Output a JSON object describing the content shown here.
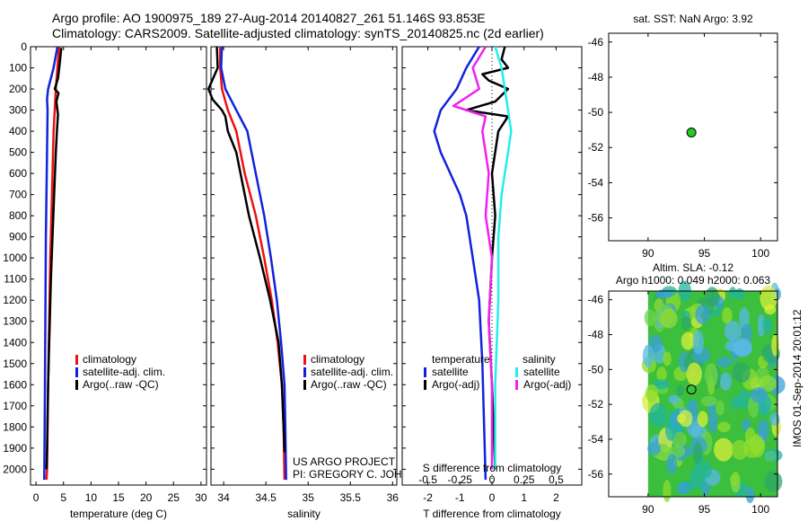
{
  "header": {
    "title_line1": "Argo profile: AO 1900975_189 27-Aug-2014 20140827_261 51.146S 93.853E",
    "title_line2": "Climatology: CARS2009. Satellite-adjusted climatology: synTS_20140825.nc (2d earlier)"
  },
  "colors": {
    "climatology": "#ee1111",
    "satellite": "#1122dd",
    "argo": "#000000",
    "salinity_sat": "#22eeee",
    "salinity_argo": "#ee22ee",
    "map_dot": "#22cc22"
  },
  "chart_data": [
    {
      "type": "line",
      "name": "temperature-profile",
      "xlabel": "temperature (deg C)",
      "ylabel": "",
      "xlim": [
        -1,
        31
      ],
      "ylim": [
        2075,
        0
      ],
      "xticks": [
        "0",
        "5",
        "10",
        "15",
        "20",
        "25",
        "30"
      ],
      "xtick_values": [
        0,
        5,
        10,
        15,
        20,
        25,
        30
      ],
      "yticks": [
        "0",
        "100",
        "200",
        "300",
        "400",
        "500",
        "600",
        "700",
        "800",
        "900",
        "1000",
        "1100",
        "1200",
        "1300",
        "1400",
        "1500",
        "1600",
        "1700",
        "1800",
        "1900",
        "2000"
      ],
      "ytick_values": [
        0,
        100,
        200,
        300,
        400,
        500,
        600,
        700,
        800,
        900,
        1000,
        1100,
        1200,
        1300,
        1400,
        1500,
        1600,
        1700,
        1800,
        1900,
        2000
      ],
      "legend": [
        "climatology",
        "satellite-adj. clim.",
        "Argo(..raw -QC)"
      ],
      "series": [
        {
          "name": "climatology",
          "key": "climatology",
          "points": [
            [
              4.2,
              0
            ],
            [
              3.9,
              100
            ],
            [
              3.6,
              200
            ],
            [
              3.4,
              300
            ],
            [
              3.2,
              400
            ],
            [
              3.0,
              600
            ],
            [
              2.8,
              800
            ],
            [
              2.6,
              1000
            ],
            [
              2.4,
              1300
            ],
            [
              2.2,
              1600
            ],
            [
              2.0,
              2000
            ],
            [
              1.9,
              2050
            ]
          ]
        },
        {
          "name": "satellite-adj. clim.",
          "key": "satellite",
          "points": [
            [
              3.9,
              0
            ],
            [
              3.2,
              100
            ],
            [
              2.2,
              200
            ],
            [
              2.0,
              250
            ],
            [
              2.1,
              300
            ],
            [
              2.0,
              500
            ],
            [
              1.8,
              900
            ],
            [
              1.7,
              1300
            ],
            [
              1.6,
              1700
            ],
            [
              1.5,
              2050
            ]
          ]
        },
        {
          "name": "Argo(..raw -QC)",
          "key": "argo",
          "points": [
            [
              4.6,
              5
            ],
            [
              4.3,
              80
            ],
            [
              4.0,
              150
            ],
            [
              3.4,
              200
            ],
            [
              4.1,
              220
            ],
            [
              3.7,
              260
            ],
            [
              4.0,
              320
            ],
            [
              3.8,
              400
            ],
            [
              3.6,
              500
            ],
            [
              3.3,
              700
            ],
            [
              3.0,
              900
            ],
            [
              2.7,
              1100
            ],
            [
              2.4,
              1400
            ],
            [
              2.2,
              1600
            ],
            [
              2.0,
              1900
            ],
            [
              1.9,
              2000
            ]
          ]
        }
      ]
    },
    {
      "type": "line",
      "name": "salinity-profile",
      "xlabel": "salinity",
      "xlim": [
        33.85,
        36.05
      ],
      "ylim": [
        2075,
        0
      ],
      "xticks": [
        "34",
        "34.5",
        "35",
        "35.5",
        "36"
      ],
      "xtick_values": [
        34,
        34.5,
        35,
        35.5,
        36
      ],
      "legend": [
        "climatology",
        "satellite-adj. clim.",
        "Argo(..raw -QC)"
      ],
      "annotation": [
        "US ARGO PROJECT",
        "PI: GREGORY C. JOHNSON"
      ],
      "series": [
        {
          "name": "climatology",
          "key": "climatology",
          "points": [
            [
              33.96,
              0
            ],
            [
              33.96,
              100
            ],
            [
              33.98,
              200
            ],
            [
              34.05,
              300
            ],
            [
              34.15,
              400
            ],
            [
              34.25,
              600
            ],
            [
              34.38,
              800
            ],
            [
              34.48,
              1000
            ],
            [
              34.57,
              1200
            ],
            [
              34.64,
              1400
            ],
            [
              34.69,
              1600
            ],
            [
              34.71,
              1800
            ],
            [
              34.72,
              2050
            ]
          ]
        },
        {
          "name": "satellite-adj. clim.",
          "key": "satellite",
          "points": [
            [
              33.98,
              0
            ],
            [
              33.97,
              100
            ],
            [
              34.02,
              200
            ],
            [
              34.15,
              300
            ],
            [
              34.28,
              400
            ],
            [
              34.38,
              600
            ],
            [
              34.48,
              800
            ],
            [
              34.56,
              1000
            ],
            [
              34.63,
              1200
            ],
            [
              34.68,
              1400
            ],
            [
              34.72,
              1600
            ],
            [
              34.73,
              1800
            ],
            [
              34.74,
              2050
            ]
          ]
        },
        {
          "name": "Argo(..raw -QC)",
          "key": "argo",
          "points": [
            [
              33.92,
              0
            ],
            [
              33.93,
              100
            ],
            [
              33.82,
              200
            ],
            [
              33.87,
              250
            ],
            [
              33.98,
              300
            ],
            [
              34.02,
              330
            ],
            [
              34.05,
              400
            ],
            [
              34.15,
              500
            ],
            [
              34.2,
              600
            ],
            [
              34.3,
              800
            ],
            [
              34.43,
              1000
            ],
            [
              34.55,
              1200
            ],
            [
              34.65,
              1400
            ],
            [
              34.69,
              1600
            ],
            [
              34.71,
              1800
            ],
            [
              34.72,
              1920
            ]
          ]
        }
      ]
    },
    {
      "type": "line",
      "name": "difference-profile",
      "xlabel": "T difference from climatology",
      "xlabel_top": "S difference from climatology",
      "xlim": [
        -2.8,
        2.8
      ],
      "ylim": [
        2075,
        0
      ],
      "xticks": [
        "-2",
        "-1",
        "0",
        "1",
        "2"
      ],
      "xtick_values": [
        -2,
        -1,
        0,
        1,
        2
      ],
      "xticks_top": [
        "-0.5",
        "-0.25",
        "0",
        "0.25",
        "0.5"
      ],
      "xtick_top_values": [
        -2,
        -1,
        0,
        1,
        2
      ],
      "legend_temperature": {
        "title": "temperature",
        "items": [
          "satellite",
          "Argo(-adj)"
        ]
      },
      "legend_salinity": {
        "title": "salinity",
        "items": [
          "satellite",
          "Argo(-adj)"
        ]
      },
      "series": [
        {
          "name": "T satellite",
          "key": "satellite",
          "points": [
            [
              -0.4,
              0
            ],
            [
              -0.8,
              100
            ],
            [
              -1.1,
              200
            ],
            [
              -1.6,
              300
            ],
            [
              -1.8,
              400
            ],
            [
              -1.6,
              500
            ],
            [
              -1.3,
              600
            ],
            [
              -1.0,
              700
            ],
            [
              -0.8,
              800
            ],
            [
              -0.6,
              1000
            ],
            [
              -0.4,
              1200
            ],
            [
              -0.3,
              1500
            ],
            [
              -0.2,
              2050
            ]
          ]
        },
        {
          "name": "T Argo(-adj)",
          "key": "argo",
          "points": [
            [
              0.4,
              0
            ],
            [
              0.3,
              60
            ],
            [
              0.5,
              100
            ],
            [
              -0.3,
              130
            ],
            [
              -0.1,
              160
            ],
            [
              0.5,
              200
            ],
            [
              0.1,
              260
            ],
            [
              -0.8,
              300
            ],
            [
              0.5,
              330
            ],
            [
              0.2,
              400
            ],
            [
              0.0,
              600
            ],
            [
              0.1,
              800
            ],
            [
              0.0,
              1000
            ],
            [
              -0.1,
              1300
            ],
            [
              0.0,
              1600
            ],
            [
              0.1,
              2000
            ]
          ]
        },
        {
          "name": "S satellite",
          "key": "salinity_sat",
          "points": [
            [
              0.1,
              0
            ],
            [
              0.3,
              100
            ],
            [
              0.4,
              200
            ],
            [
              0.5,
              300
            ],
            [
              0.6,
              400
            ],
            [
              0.5,
              500
            ],
            [
              0.3,
              700
            ],
            [
              0.2,
              900
            ],
            [
              0.2,
              1200
            ],
            [
              0.1,
              1600
            ],
            [
              0.1,
              2000
            ]
          ]
        },
        {
          "name": "S Argo(-adj)",
          "key": "salinity_argo",
          "points": [
            [
              -0.2,
              0
            ],
            [
              -0.6,
              100
            ],
            [
              -0.4,
              200
            ],
            [
              -1.2,
              280
            ],
            [
              -0.2,
              330
            ],
            [
              -0.3,
              400
            ],
            [
              -0.1,
              600
            ],
            [
              -0.2,
              800
            ],
            [
              0.0,
              1000
            ],
            [
              -0.1,
              1300
            ],
            [
              0.0,
              1600
            ],
            [
              0.0,
              2000
            ]
          ]
        }
      ]
    },
    {
      "type": "scatter",
      "name": "sst-map",
      "title": "sat. SST: NaN Argo: 3.92",
      "xlim": [
        86.5,
        101.5
      ],
      "ylim": [
        -57.3,
        -45.5
      ],
      "xticks": [
        "90",
        "95",
        "100"
      ],
      "xtick_values": [
        90,
        95,
        100
      ],
      "yticks": [
        "-46",
        "-48",
        "-50",
        "-52",
        "-54",
        "-56"
      ],
      "ytick_values": [
        -46,
        -48,
        -50,
        -52,
        -54,
        -56
      ],
      "points": [
        [
          93.853,
          -51.146
        ]
      ]
    },
    {
      "type": "heatmap",
      "name": "sla-map",
      "title_line1": "Altim. SLA: -0.12",
      "title_line2": "Argo h1000: 0.049 h2000: 0.063",
      "xlim": [
        86.5,
        101.5
      ],
      "ylim": [
        -57.3,
        -45.5
      ],
      "data_xlim": [
        90,
        101.5
      ],
      "xticks": [
        "90",
        "95",
        "100"
      ],
      "xtick_values": [
        90,
        95,
        100
      ],
      "yticks": [
        "-46",
        "-48",
        "-50",
        "-52",
        "-54",
        "-56"
      ],
      "ytick_values": [
        -46,
        -48,
        -50,
        -52,
        -54,
        -56
      ],
      "points": [
        [
          93.853,
          -51.146
        ]
      ]
    }
  ],
  "footer": {
    "timestamp": "IMOS 01-Sep-2014 20:01:12"
  }
}
